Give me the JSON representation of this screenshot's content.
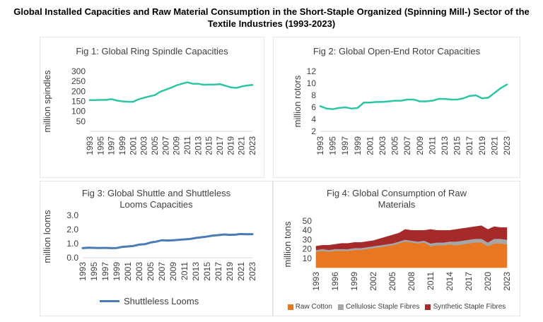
{
  "title": "Global Installed Capacities and Raw Material Consumption in the Short-Staple Organized (Spinning Mill-) Sector of the Textile Industries (1993-2023)",
  "chart_data": [
    {
      "type": "line",
      "title": "Fig 1: Global Ring Spindle Capacities",
      "ylabel": "million spindles",
      "xlabel": "",
      "ylim": [
        0,
        300
      ],
      "yticks": [
        50,
        100,
        150,
        200,
        250,
        300
      ],
      "xticks": [
        "1993",
        "1995",
        "1997",
        "1999",
        "2001",
        "2003",
        "2005",
        "2007",
        "2009",
        "2011",
        "2013",
        "2015",
        "2017",
        "2019",
        "2021",
        "2023"
      ],
      "x": [
        1993,
        1994,
        1995,
        1996,
        1997,
        1998,
        1999,
        2000,
        2001,
        2002,
        2003,
        2004,
        2005,
        2006,
        2007,
        2008,
        2009,
        2010,
        2011,
        2012,
        2013,
        2014,
        2015,
        2016,
        2017,
        2018,
        2019,
        2020,
        2021,
        2022,
        2023
      ],
      "series": [
        {
          "color": "#2ec4a6",
          "values": [
            156,
            156,
            157,
            157,
            161,
            154,
            150,
            148,
            148,
            160,
            168,
            175,
            181,
            198,
            208,
            218,
            230,
            238,
            245,
            238,
            238,
            233,
            234,
            234,
            236,
            228,
            220,
            217,
            224,
            229,
            232
          ]
        }
      ],
      "grid": false,
      "legend": "none"
    },
    {
      "type": "line",
      "title": "Fig 2: Global Open-End Rotor Capacities",
      "ylabel": "million rotors",
      "xlabel": "",
      "ylim": [
        2,
        12
      ],
      "yticks": [
        2,
        4,
        6,
        8,
        10,
        12
      ],
      "xticks": [
        "1993",
        "1995",
        "1997",
        "1999",
        "2001",
        "2003",
        "2005",
        "2007",
        "2009",
        "2011",
        "2013",
        "2015",
        "2017",
        "2019",
        "2021",
        "2023"
      ],
      "x": [
        1993,
        1994,
        1995,
        1996,
        1997,
        1998,
        1999,
        2000,
        2001,
        2002,
        2003,
        2004,
        2005,
        2006,
        2007,
        2008,
        2009,
        2010,
        2011,
        2012,
        2013,
        2014,
        2015,
        2016,
        2017,
        2018,
        2019,
        2020,
        2021,
        2022,
        2023
      ],
      "series": [
        {
          "color": "#2ec4a6",
          "values": [
            6.2,
            5.8,
            5.7,
            5.9,
            6.0,
            5.8,
            5.9,
            6.8,
            6.8,
            6.9,
            6.9,
            7.0,
            7.1,
            7.1,
            7.3,
            7.3,
            7.0,
            7.0,
            7.1,
            7.4,
            7.4,
            7.3,
            7.3,
            7.5,
            7.9,
            8.0,
            7.5,
            7.6,
            8.4,
            9.2,
            9.8
          ]
        }
      ],
      "grid": false,
      "legend": "none"
    },
    {
      "type": "line",
      "title": "Fig 3: Global Shuttle and Shuttleless Looms Capacities",
      "ylabel": "million looms",
      "xlabel": "",
      "ylim": [
        0,
        3
      ],
      "yticks": [
        "0.0",
        "1.0",
        "2.0",
        "3.0"
      ],
      "xticks": [
        "1993",
        "1995",
        "1997",
        "1999",
        "2001",
        "2003",
        "2005",
        "2007",
        "2009",
        "2011",
        "2013",
        "2015",
        "2017",
        "2019",
        "2021",
        "2023"
      ],
      "x": [
        1993,
        1994,
        1995,
        1996,
        1997,
        1998,
        1999,
        2000,
        2001,
        2002,
        2003,
        2004,
        2005,
        2006,
        2007,
        2008,
        2009,
        2010,
        2011,
        2012,
        2013,
        2014,
        2015,
        2016,
        2017,
        2018,
        2019,
        2020,
        2021,
        2022,
        2023
      ],
      "series": [
        {
          "name": "Shuttleless Looms",
          "color": "#4a7bb7",
          "values": [
            0.68,
            0.71,
            0.7,
            0.69,
            0.7,
            0.68,
            0.69,
            0.77,
            0.8,
            0.84,
            0.93,
            0.96,
            1.08,
            1.14,
            1.24,
            1.22,
            1.24,
            1.27,
            1.3,
            1.33,
            1.4,
            1.45,
            1.5,
            1.57,
            1.6,
            1.65,
            1.62,
            1.64,
            1.68,
            1.66,
            1.67
          ]
        }
      ],
      "grid": false,
      "legend": "bottom-left"
    },
    {
      "type": "area",
      "stacked": true,
      "title": "Fig 4: Global Consumption of Raw Materials",
      "ylabel": "million tons",
      "xlabel": "",
      "ylim": [
        0,
        50
      ],
      "yticks": [
        10,
        20,
        30,
        40,
        50
      ],
      "xticks": [
        "1993",
        "1996",
        "1999",
        "2002",
        "2005",
        "2008",
        "2011",
        "2014",
        "2017",
        "2020",
        "2023"
      ],
      "x": [
        1993,
        1994,
        1995,
        1996,
        1997,
        1998,
        1999,
        2000,
        2001,
        2002,
        2003,
        2004,
        2005,
        2006,
        2007,
        2008,
        2009,
        2010,
        2011,
        2012,
        2013,
        2014,
        2015,
        2016,
        2017,
        2018,
        2019,
        2020,
        2021,
        2022,
        2023
      ],
      "series": [
        {
          "name": "Raw Cotton",
          "color": "#e87722",
          "values": [
            17,
            18,
            17,
            18,
            18,
            18,
            19,
            19,
            20,
            21,
            22,
            23,
            24,
            26,
            28,
            27,
            26,
            27,
            23,
            24,
            24,
            25,
            24,
            25,
            26,
            27,
            27,
            23,
            26,
            26,
            25
          ]
        },
        {
          "name": "Cellulosic Staple Fibres",
          "color": "#a6a6a6",
          "values": [
            2,
            2,
            2,
            2,
            2,
            2,
            2,
            2,
            2,
            2,
            2,
            2,
            2,
            2,
            2,
            2,
            2,
            2,
            3,
            3,
            3,
            3,
            4,
            4,
            4,
            4,
            4,
            4,
            5,
            5,
            5
          ]
        },
        {
          "name": "Synthetic Staple Fibres",
          "color": "#a52a2a",
          "values": [
            4,
            4,
            5,
            5,
            6,
            6,
            6,
            6,
            6,
            6,
            7,
            8,
            9,
            9,
            11,
            11,
            12,
            11,
            15,
            13,
            13,
            12,
            13,
            13,
            13,
            13,
            14,
            14,
            13,
            12,
            13
          ]
        }
      ],
      "grid": false,
      "legend": "bottom"
    }
  ]
}
